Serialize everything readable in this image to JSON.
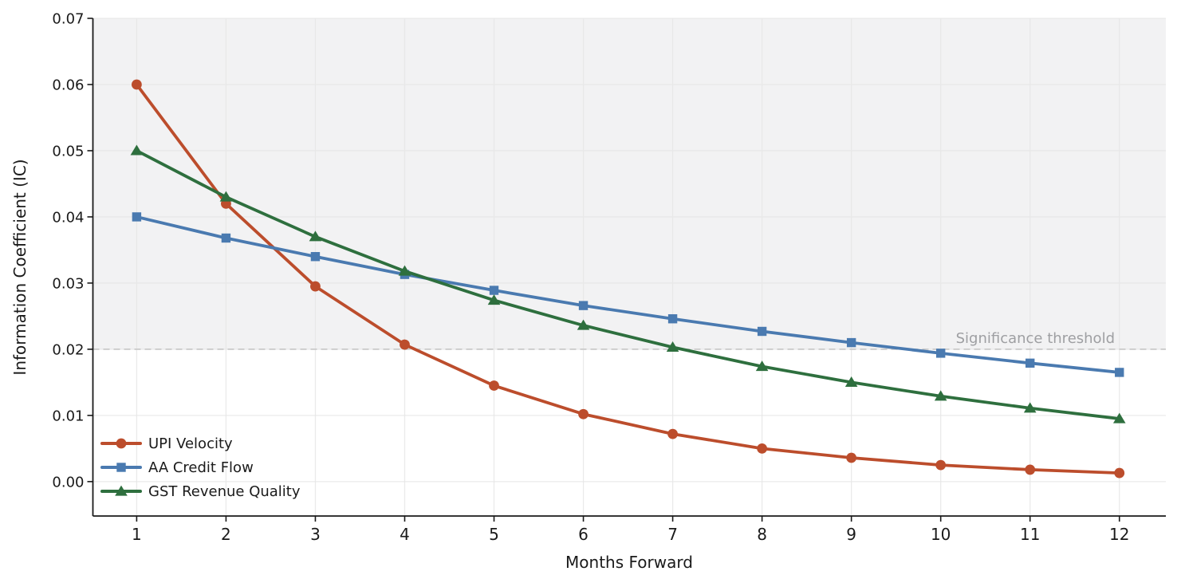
{
  "chart_data": {
    "type": "line",
    "title": "",
    "xlabel": "Months Forward",
    "ylabel": "Information Coefficient (IC)",
    "x": [
      1,
      2,
      3,
      4,
      5,
      6,
      7,
      8,
      9,
      10,
      11,
      12
    ],
    "xtick_labels": [
      "1",
      "2",
      "3",
      "4",
      "5",
      "6",
      "7",
      "8",
      "9",
      "10",
      "11",
      "12"
    ],
    "yticks": [
      0.0,
      0.01,
      0.02,
      0.03,
      0.04,
      0.05,
      0.06,
      0.07
    ],
    "ytick_labels": [
      "0.00",
      "0.01",
      "0.02",
      "0.03",
      "0.04",
      "0.05",
      "0.06",
      "0.07"
    ],
    "series": [
      {
        "name": "UPI Velocity",
        "color": "#bc4d2c",
        "marker": "circle",
        "values": [
          0.06,
          0.042,
          0.0295,
          0.0207,
          0.0145,
          0.0102,
          0.0072,
          0.005,
          0.0036,
          0.0025,
          0.0018,
          0.0013
        ]
      },
      {
        "name": "AA Credit Flow",
        "color": "#4a7ab0",
        "marker": "square",
        "values": [
          0.04,
          0.0368,
          0.034,
          0.0313,
          0.0289,
          0.0266,
          0.0246,
          0.0227,
          0.021,
          0.0194,
          0.0179,
          0.0165
        ]
      },
      {
        "name": "GST Revenue Quality",
        "color": "#2e6f3e",
        "marker": "triangle",
        "values": [
          0.05,
          0.043,
          0.037,
          0.0318,
          0.0274,
          0.0236,
          0.0203,
          0.0174,
          0.015,
          0.0129,
          0.0111,
          0.0095
        ]
      }
    ],
    "threshold": {
      "value": 0.02,
      "label": "Significance threshold",
      "line_color": "#c9c9c9",
      "label_color": "#9e9fa2"
    },
    "shaded_band": {
      "from": 0.02,
      "to": 0.07,
      "color": "#f2f2f3"
    },
    "axes": {
      "xlim": [
        0.51,
        12.52
      ],
      "ylim": [
        -0.0052,
        0.07
      ],
      "grid": true,
      "grid_color": "#e7e7e7",
      "spine_color": "#1a1a1a",
      "text_color": "#1a1a1a",
      "legend_position": "lower-left"
    }
  }
}
